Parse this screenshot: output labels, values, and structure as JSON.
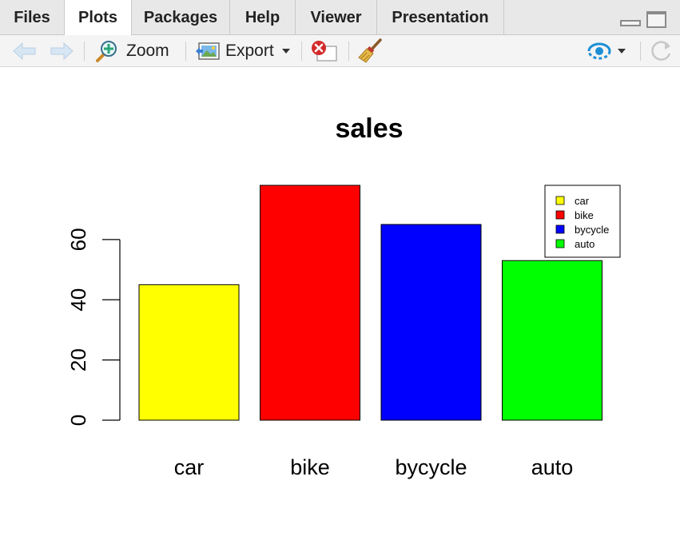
{
  "tabs": [
    {
      "label": "Files",
      "active": false
    },
    {
      "label": "Plots",
      "active": true
    },
    {
      "label": "Packages",
      "active": false
    },
    {
      "label": "Help",
      "active": false
    },
    {
      "label": "Viewer",
      "active": false
    },
    {
      "label": "Presentation",
      "active": false
    }
  ],
  "toolbar": {
    "zoom_label": "Zoom",
    "export_label": "Export"
  },
  "colors": {
    "car": "#ffff00",
    "bike": "#ff0000",
    "bycycle": "#0000ff",
    "auto": "#00ff00"
  },
  "chart_data": {
    "type": "bar",
    "title": "sales",
    "categories": [
      "car",
      "bike",
      "bycycle",
      "auto"
    ],
    "values": [
      45,
      78,
      65,
      53
    ],
    "colors": [
      "#ffff00",
      "#ff0000",
      "#0000ff",
      "#00ff00"
    ],
    "ylim": [
      0,
      78
    ],
    "yticks": [
      0,
      20,
      40,
      60
    ],
    "legend": {
      "position": "top-right",
      "entries": [
        "car",
        "bike",
        "bycycle",
        "auto"
      ]
    },
    "grid": false
  }
}
